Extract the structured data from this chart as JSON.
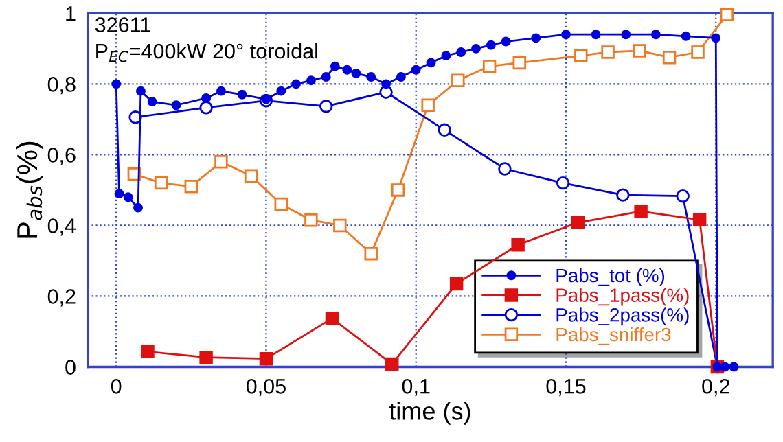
{
  "chart_data": {
    "type": "line",
    "xlabel": "time (s)",
    "ylabel": "P$_{abs}$(%)",
    "annotations": [
      "32611",
      "P$_{EC}$=400kW 20° toroidal"
    ],
    "xlim": [
      -0.0095,
      0.219
    ],
    "ylim": [
      0,
      1
    ],
    "xticks": [
      0,
      {
        "value": 0.05,
        "label": "0,05"
      },
      {
        "value": 0.1,
        "label": "0,1"
      },
      {
        "value": 0.15,
        "label": "0,15"
      },
      {
        "value": 0.2,
        "label": "0,2"
      }
    ],
    "yticks": [
      0,
      {
        "value": 0.2,
        "label": "0,2"
      },
      {
        "value": 0.4,
        "label": "0,4"
      },
      {
        "value": 0.6,
        "label": "0,6"
      },
      {
        "value": 0.8,
        "label": "0,8"
      },
      1
    ],
    "grid": true,
    "legend": "bottom right",
    "series": [
      {
        "name": "Pabs_tot (%)",
        "color": "#0000dd",
        "marker": "circle",
        "x": [
          0,
          0.001,
          0.004,
          0.0073,
          0.0082,
          0.012,
          0.02,
          0.03,
          0.035,
          0.042,
          0.05,
          0.055,
          0.06,
          0.065,
          0.07,
          0.073,
          0.077,
          0.08,
          0.085,
          0.09,
          0.095,
          0.1,
          0.105,
          0.11,
          0.115,
          0.12,
          0.125,
          0.13,
          0.14,
          0.15,
          0.16,
          0.17,
          0.18,
          0.19,
          0.2,
          0.2005,
          0.203,
          0.206
        ],
        "values": [
          0.8,
          0.49,
          0.48,
          0.45,
          0.78,
          0.75,
          0.74,
          0.76,
          0.78,
          0.77,
          0.757,
          0.78,
          0.8,
          0.81,
          0.82,
          0.85,
          0.84,
          0.83,
          0.82,
          0.8,
          0.82,
          0.84,
          0.86,
          0.88,
          0.89,
          0.9,
          0.91,
          0.92,
          0.93,
          0.94,
          0.94,
          0.94,
          0.94,
          0.935,
          0.93,
          0,
          0,
          0
        ]
      },
      {
        "name": "Pabs_1pass(%)",
        "color": "#dd1111",
        "marker": "square",
        "x": [
          0.0105,
          0.03,
          0.05,
          0.072,
          0.092,
          0.1135,
          0.134,
          0.154,
          0.175,
          0.1946,
          0.2005
        ],
        "values": [
          0.043,
          0.027,
          0.023,
          0.137,
          0.008,
          0.235,
          0.345,
          0.408,
          0.44,
          0.416,
          0
        ]
      },
      {
        "name": "Pabs_2pass(%)",
        "color": "#0000dd",
        "marker": "circle",
        "x": [
          0.0064,
          0.03,
          0.05,
          0.07,
          0.09,
          0.1095,
          0.1296,
          0.149,
          0.169,
          0.189,
          0.2005
        ],
        "values": [
          0.706,
          0.733,
          0.753,
          0.737,
          0.777,
          0.67,
          0.56,
          0.52,
          0.486,
          0.483,
          0
        ]
      },
      {
        "name": "Pabs_sniffer3",
        "color": "#f07820",
        "marker": "square",
        "x": [
          0.006,
          0.015,
          0.025,
          0.035,
          0.045,
          0.055,
          0.065,
          0.0746,
          0.085,
          0.094,
          0.104,
          0.114,
          0.1245,
          0.1345,
          0.155,
          0.164,
          0.1745,
          0.1845,
          0.194,
          0.2037
        ],
        "values": [
          0.545,
          0.52,
          0.51,
          0.58,
          0.54,
          0.46,
          0.415,
          0.4,
          0.32,
          0.5,
          0.74,
          0.81,
          0.85,
          0.86,
          0.88,
          0.89,
          0.894,
          0.875,
          0.89,
          0.996
        ]
      }
    ]
  }
}
